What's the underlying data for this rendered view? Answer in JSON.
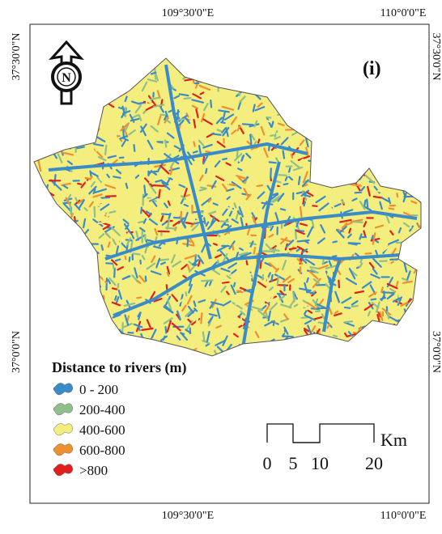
{
  "map": {
    "panel_label": "(i)",
    "north_label": "N",
    "top_labels": [
      "109°30'0\"E",
      "110°0'0\"E"
    ],
    "bottom_labels": [
      "109°30'0\"E",
      "110°0'0\"E"
    ],
    "left_labels": [
      "37°30'0\"N",
      "37°0'0\"N"
    ],
    "right_labels": [
      "37°30'0\"N",
      "37°0'0\"N"
    ],
    "legend": {
      "title": "Distance to rivers (m)",
      "items": [
        {
          "label": "0 - 200",
          "color": "#3a8cc8"
        },
        {
          "label": "200-400",
          "color": "#8fbf8a"
        },
        {
          "label": "400-600",
          "color": "#f4ee7e"
        },
        {
          "label": "600-800",
          "color": "#ef9030"
        },
        {
          "label": ">800",
          "color": "#e0201c"
        }
      ]
    },
    "scale": {
      "labels": [
        "0",
        "5",
        "10",
        "20"
      ],
      "unit": "Km"
    }
  }
}
